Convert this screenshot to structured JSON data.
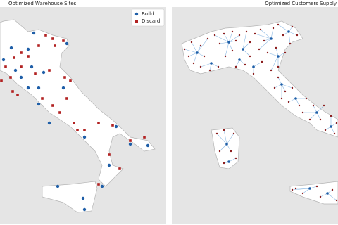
{
  "chart_data": [
    {
      "type": "scatter",
      "title": "Optimized Warehouse Sites",
      "legend": "upper right",
      "series": [
        {
          "name": "Build",
          "color": "#1f5fa8",
          "marker": "circle",
          "x": [
            48,
            16,
            40,
            95,
            5,
            45,
            22,
            62,
            40,
            90,
            55,
            70,
            165,
            120,
            185,
            210,
            155,
            145,
            82,
            118,
            120,
            55,
            30
          ],
          "y": [
            47,
            68,
            70,
            62,
            85,
            95,
            100,
            103,
            125,
            125,
            148,
            175,
            180,
            195,
            205,
            207,
            235,
            265,
            265,
            282,
            298,
            125,
            110
          ]
        },
        {
          "name": "Discard",
          "color": "#b22222",
          "marker": "square",
          "x": [
            65,
            75,
            90,
            78,
            55,
            40,
            30,
            20,
            8,
            15,
            2,
            18,
            30,
            50,
            70,
            92,
            100,
            95,
            75,
            60,
            85,
            105,
            110,
            120,
            140,
            160,
            205,
            185,
            155,
            170,
            140,
            25
          ],
          "y": [
            50,
            55,
            58,
            65,
            65,
            80,
            75,
            82,
            95,
            110,
            115,
            130,
            95,
            105,
            100,
            110,
            115,
            140,
            150,
            140,
            160,
            175,
            185,
            185,
            175,
            178,
            195,
            200,
            220,
            240,
            262,
            135
          ]
        }
      ]
    },
    {
      "type": "network",
      "title": "Optimized Customers Supply",
      "series": [
        {
          "color": "#1f5fa8",
          "marker": "circle",
          "x": [
            280,
            325,
            345,
            385,
            410,
            300,
            340,
            360,
            400,
            420,
            450,
            470,
            322,
            325,
            440,
            465,
            395
          ],
          "y": [
            75,
            60,
            70,
            55,
            45,
            90,
            85,
            95,
            120,
            140,
            160,
            180,
            205,
            230,
            268,
            275,
            80
          ]
        },
        {
          "color": "#8b1a1a",
          "marker": "circle",
          "x": [
            262,
            268,
            272,
            285,
            290,
            295,
            305,
            312,
            318,
            330,
            335,
            340,
            350,
            355,
            362,
            370,
            375,
            388,
            395,
            402,
            415,
            422,
            412,
            405,
            392,
            380,
            368,
            355,
            348,
            335,
            320,
            310,
            298,
            285,
            275,
            330,
            372,
            385,
            395,
            405,
            415,
            390,
            425,
            435,
            445,
            455,
            460,
            470,
            478,
            475,
            462,
            440,
            430,
            410,
            400,
            308,
            318,
            332,
            328,
            312,
            335,
            318,
            420,
            430,
            450,
            455,
            472,
            478,
            415,
            395,
            360
          ],
          "y": [
            70,
            80,
            60,
            65,
            80,
            55,
            50,
            62,
            48,
            45,
            58,
            50,
            45,
            60,
            48,
            42,
            58,
            40,
            35,
            50,
            38,
            50,
            62,
            75,
            68,
            75,
            70,
            80,
            92,
            95,
            80,
            95,
            100,
            95,
            90,
            72,
            88,
            100,
            110,
            130,
            125,
            125,
            150,
            140,
            150,
            170,
            150,
            165,
            175,
            190,
            185,
            170,
            160,
            145,
            140,
            190,
            185,
            190,
            215,
            215,
            225,
            232,
            268,
            275,
            265,
            280,
            270,
            285,
            270,
            95,
            105
          ]
        }
      ]
    }
  ]
}
